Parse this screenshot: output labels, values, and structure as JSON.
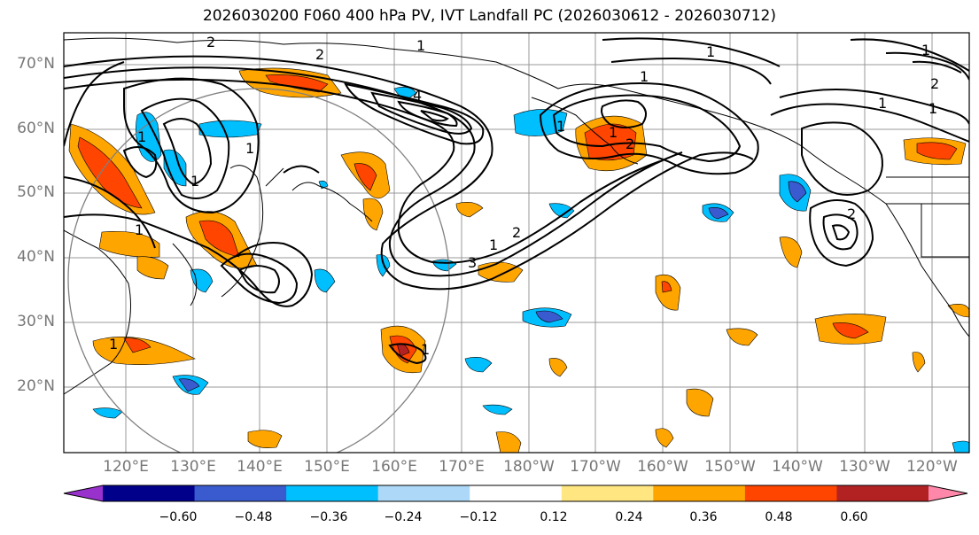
{
  "title": "2026030200 F060 400 hPa PV, IVT Landfall PC (2026030612 - 2026030712)",
  "lat_labels": [
    "70°N",
    "60°N",
    "50°N",
    "40°N",
    "30°N",
    "20°N"
  ],
  "lon_labels": [
    "120°E",
    "130°E",
    "140°E",
    "150°E",
    "160°E",
    "170°E",
    "180°W",
    "170°W",
    "160°W",
    "150°W",
    "140°W",
    "130°W",
    "120°W"
  ],
  "contour_labels": [
    "2",
    "2",
    "1",
    "4",
    "1",
    "1",
    "1",
    "2",
    "1",
    "1",
    "1",
    "2",
    "1",
    "2",
    "3",
    "1",
    "1",
    "1",
    "1",
    "1",
    "2",
    "1",
    "1"
  ],
  "colorbar": {
    "ticks": [
      "−0.60",
      "−0.48",
      "−0.36",
      "−0.24",
      "−0.12",
      "0.12",
      "0.24",
      "0.36",
      "0.48",
      "0.60"
    ],
    "colors": [
      "#9932cc",
      "#00008b",
      "#3a5bcf",
      "#00bfff",
      "#add8f7",
      "#ffffff",
      "#ffe680",
      "#ffa500",
      "#ff4500",
      "#b22222",
      "#ff88aa"
    ]
  },
  "map_colors": {
    "land_line": "#000000",
    "grid": "#999999",
    "circle": "#808080"
  }
}
